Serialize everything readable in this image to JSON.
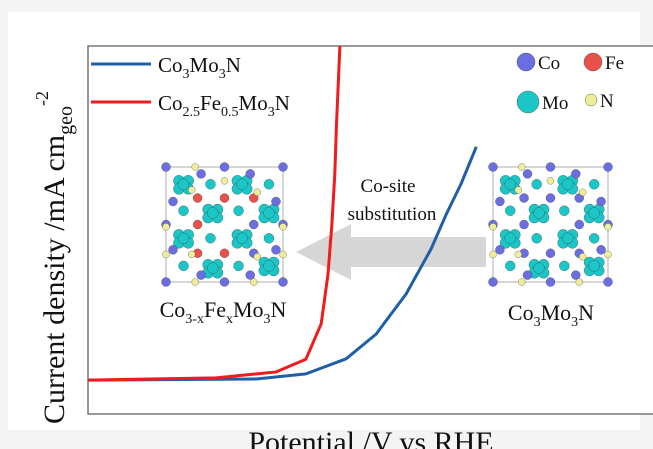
{
  "chart_data": {
    "type": "line",
    "title": "",
    "xlabel": "Potential /V vs RHE",
    "ylabel": "Current density /mA cm",
    "ylabel_sub": "geo",
    "ylabel_sup": "-2",
    "xlim": [
      0,
      100
    ],
    "ylim": [
      0,
      100
    ],
    "ticks_shown": false,
    "grid": false,
    "legend_position": "top-left",
    "series": [
      {
        "name": "Co3Mo3N",
        "label_parts": [
          "Co",
          "3",
          "Mo",
          "3",
          "N"
        ],
        "color": "#1f5fa8",
        "x": [
          0,
          29.7,
          38.5,
          45.6,
          50.9,
          56.2,
          60.6,
          63.3,
          65.9,
          68.6
        ],
        "y": [
          9.2,
          9.5,
          10.9,
          15.0,
          21.7,
          32.6,
          44.8,
          54.3,
          62.5,
          72.6
        ]
      },
      {
        "name": "Co2.5Fe0.5Mo3N",
        "label_parts": [
          "Co",
          "2.5",
          "Fe",
          "0.5",
          "Mo",
          "3",
          "N"
        ],
        "color": "#ee1c1c",
        "x": [
          0,
          22.6,
          33.2,
          38.5,
          41.2,
          42.4,
          43.1,
          43.6,
          43.9,
          44.3,
          44.5
        ],
        "y": [
          9.2,
          9.8,
          11.4,
          14.9,
          24.5,
          38.0,
          51.6,
          65.2,
          78.8,
          92.4,
          100
        ]
      }
    ],
    "annotations": {
      "arrow_text_1": "Co-site",
      "arrow_text_2": "substitution",
      "left_structure": {
        "base": "Co",
        "s1": "3-x",
        "m": "Fe",
        "s2": "x",
        "m2": "Mo",
        "s3": "3",
        "end": "N"
      },
      "right_structure": {
        "base": "Co",
        "s1": "3",
        "m": "Mo",
        "s2": "3",
        "end": "N"
      }
    },
    "atom_legend": [
      {
        "label": "Co",
        "color": "#6a6ee0"
      },
      {
        "label": "Fe",
        "color": "#e8504a"
      },
      {
        "label": "Mo",
        "color": "#1cc6c6"
      },
      {
        "label": "N",
        "color": "#eeee99"
      }
    ]
  }
}
